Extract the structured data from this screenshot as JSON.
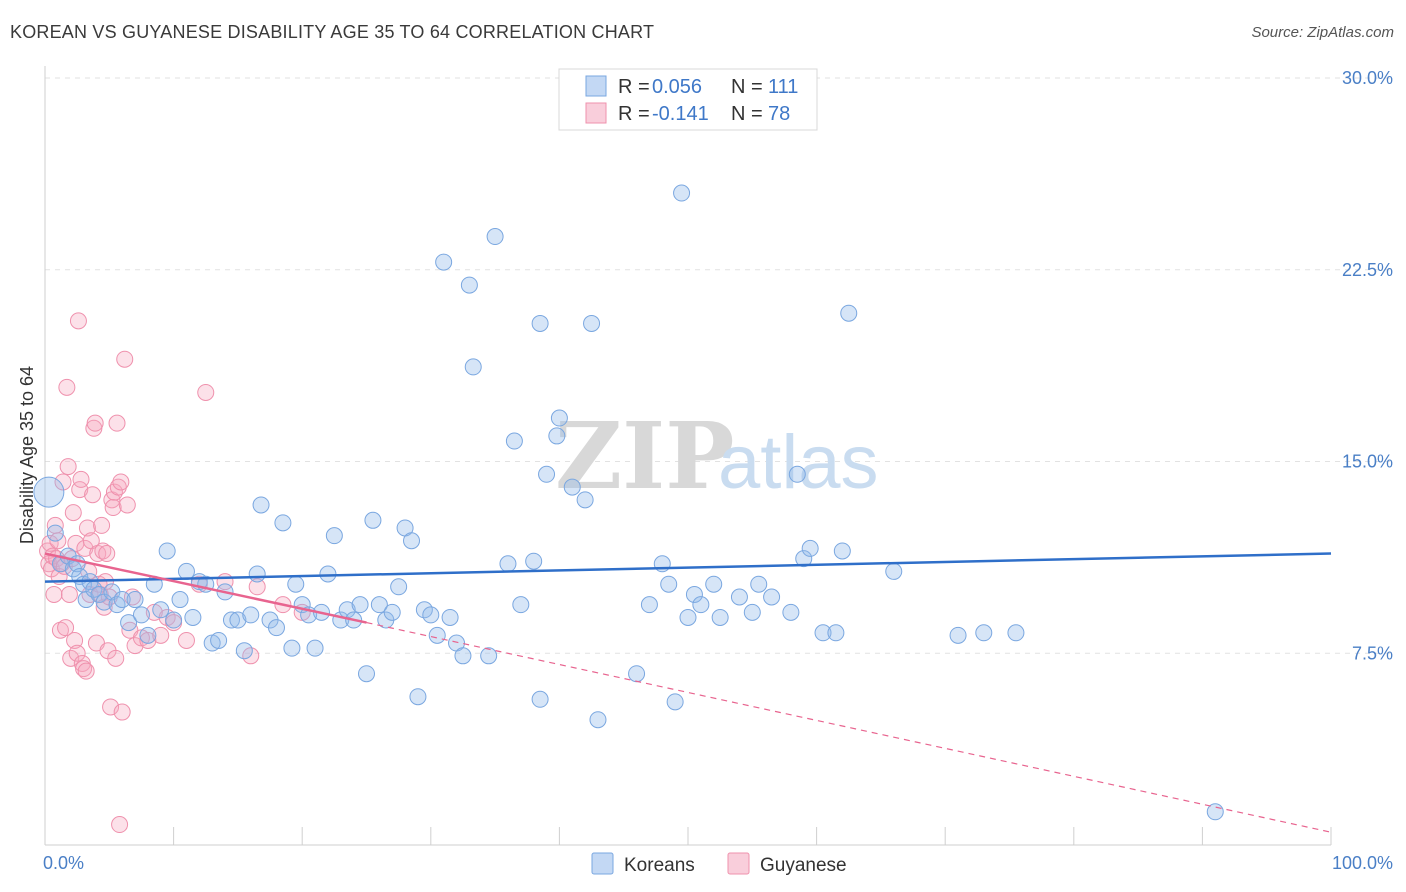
{
  "header": {
    "title": "KOREAN VS GUYANESE DISABILITY AGE 35 TO 64 CORRELATION CHART",
    "source": "Source: ZipAtlas.com"
  },
  "watermark": {
    "part1": "ZIP",
    "part2": "atlas"
  },
  "legend": {
    "r_label": "R =",
    "n_label": "N =",
    "rows": [
      {
        "r": "0.056",
        "n": "111",
        "color": "#a9c8ef"
      },
      {
        "r": "-0.141",
        "n": "78",
        "color": "#f7b9cc"
      }
    ]
  },
  "colors": {
    "koreans_fill": "rgba(146,186,234,0.38)",
    "koreans_stroke": "#7aa7e0",
    "koreans_line": "#2f6fc9",
    "guyanese_fill": "rgba(245,170,192,0.35)",
    "guyanese_stroke": "#ef91ad",
    "guyanese_line": "#e8648f"
  },
  "chart_data": {
    "type": "scatter",
    "title": "KOREAN VS GUYANESE DISABILITY AGE 35 TO 64 CORRELATION CHART",
    "xlabel": "",
    "ylabel": "Disability Age 35 to 64",
    "xlim": [
      0,
      100
    ],
    "ylim": [
      0,
      30.0
    ],
    "x_tick_labels": [
      "0.0%",
      "100.0%"
    ],
    "y_ticks": [
      7.5,
      15.0,
      22.5,
      30.0
    ],
    "y_tick_labels": [
      "7.5%",
      "15.0%",
      "22.5%",
      "30.0%"
    ],
    "grid": true,
    "legend_position": "top-center",
    "series": [
      {
        "name": "Koreans",
        "r": 0.056,
        "n": 111,
        "trend": {
          "x0": 0,
          "y0": 10.3,
          "x1": 100,
          "y1": 11.4
        },
        "points": [
          [
            0.3,
            13.8
          ],
          [
            0.8,
            12.2
          ],
          [
            1.2,
            11.0
          ],
          [
            1.8,
            11.3
          ],
          [
            2.2,
            10.8
          ],
          [
            2.5,
            11.0
          ],
          [
            2.7,
            10.5
          ],
          [
            3.0,
            10.2
          ],
          [
            3.2,
            9.6
          ],
          [
            3.5,
            10.3
          ],
          [
            3.8,
            10.0
          ],
          [
            4.2,
            9.8
          ],
          [
            4.6,
            9.5
          ],
          [
            5.2,
            9.9
          ],
          [
            5.6,
            9.4
          ],
          [
            6.0,
            9.6
          ],
          [
            6.5,
            8.7
          ],
          [
            7.0,
            9.6
          ],
          [
            7.5,
            9.0
          ],
          [
            8.0,
            8.2
          ],
          [
            8.5,
            10.2
          ],
          [
            9.0,
            9.2
          ],
          [
            9.5,
            11.5
          ],
          [
            10.0,
            8.8
          ],
          [
            10.5,
            9.6
          ],
          [
            11.0,
            10.7
          ],
          [
            11.5,
            8.9
          ],
          [
            12.0,
            10.3
          ],
          [
            12.5,
            10.2
          ],
          [
            13.0,
            7.9
          ],
          [
            13.5,
            8.0
          ],
          [
            14.0,
            9.9
          ],
          [
            14.5,
            8.8
          ],
          [
            15.0,
            8.8
          ],
          [
            15.5,
            7.6
          ],
          [
            16.0,
            9.0
          ],
          [
            16.5,
            10.6
          ],
          [
            16.8,
            13.3
          ],
          [
            17.5,
            8.8
          ],
          [
            18.0,
            8.5
          ],
          [
            18.5,
            12.6
          ],
          [
            19.2,
            7.7
          ],
          [
            19.5,
            10.2
          ],
          [
            20.0,
            9.4
          ],
          [
            20.5,
            9.0
          ],
          [
            21.0,
            7.7
          ],
          [
            21.5,
            9.1
          ],
          [
            22.0,
            10.6
          ],
          [
            22.5,
            12.1
          ],
          [
            23.0,
            8.8
          ],
          [
            23.5,
            9.2
          ],
          [
            24.0,
            8.8
          ],
          [
            24.5,
            9.4
          ],
          [
            25.0,
            6.7
          ],
          [
            25.5,
            12.7
          ],
          [
            26.0,
            9.4
          ],
          [
            26.5,
            8.8
          ],
          [
            27.0,
            9.1
          ],
          [
            27.5,
            10.1
          ],
          [
            28.0,
            12.4
          ],
          [
            28.5,
            11.9
          ],
          [
            29.0,
            5.8
          ],
          [
            29.5,
            9.2
          ],
          [
            30.0,
            9.0
          ],
          [
            30.5,
            8.2
          ],
          [
            31.0,
            22.8
          ],
          [
            31.5,
            8.9
          ],
          [
            32.0,
            7.9
          ],
          [
            32.5,
            7.4
          ],
          [
            33.0,
            21.9
          ],
          [
            33.3,
            18.7
          ],
          [
            34.5,
            7.4
          ],
          [
            35.0,
            23.8
          ],
          [
            36.0,
            11.0
          ],
          [
            36.5,
            15.8
          ],
          [
            37.0,
            9.4
          ],
          [
            38.0,
            11.1
          ],
          [
            38.5,
            20.4
          ],
          [
            38.5,
            5.7
          ],
          [
            39.0,
            14.5
          ],
          [
            39.8,
            16.0
          ],
          [
            40.0,
            16.7
          ],
          [
            41.0,
            14.0
          ],
          [
            42.0,
            13.5
          ],
          [
            42.5,
            20.4
          ],
          [
            43.0,
            4.9
          ],
          [
            46.0,
            6.7
          ],
          [
            47.0,
            9.4
          ],
          [
            48.0,
            11.0
          ],
          [
            48.5,
            10.2
          ],
          [
            49.0,
            5.6
          ],
          [
            49.5,
            25.5
          ],
          [
            50.0,
            8.9
          ],
          [
            50.5,
            9.8
          ],
          [
            51.0,
            9.4
          ],
          [
            52.0,
            10.2
          ],
          [
            52.5,
            8.9
          ],
          [
            54.0,
            9.7
          ],
          [
            55.0,
            9.1
          ],
          [
            55.5,
            10.2
          ],
          [
            56.5,
            9.7
          ],
          [
            58.0,
            9.1
          ],
          [
            58.5,
            14.5
          ],
          [
            59.0,
            11.2
          ],
          [
            59.5,
            11.6
          ],
          [
            60.5,
            8.3
          ],
          [
            61.5,
            8.3
          ],
          [
            62.0,
            11.5
          ],
          [
            62.5,
            20.8
          ],
          [
            66.0,
            10.7
          ],
          [
            71.0,
            8.2
          ],
          [
            73.0,
            8.3
          ],
          [
            75.5,
            8.3
          ],
          [
            91.0,
            1.3
          ]
        ]
      },
      {
        "name": "Guyanese",
        "r": -0.141,
        "n": 78,
        "trend": {
          "x0": 0,
          "y0": 11.4,
          "x1": 25,
          "y1": 8.7
        },
        "trend_extension": {
          "x0": 25,
          "y0": 8.7,
          "x1": 100,
          "y1": 0.5
        },
        "points": [
          [
            0.2,
            11.5
          ],
          [
            0.3,
            11.0
          ],
          [
            0.4,
            11.8
          ],
          [
            0.5,
            10.8
          ],
          [
            0.6,
            11.3
          ],
          [
            0.7,
            9.8
          ],
          [
            0.8,
            12.5
          ],
          [
            0.9,
            11.2
          ],
          [
            1.0,
            11.9
          ],
          [
            1.1,
            10.5
          ],
          [
            1.2,
            8.4
          ],
          [
            1.3,
            11.0
          ],
          [
            1.4,
            14.2
          ],
          [
            1.5,
            10.9
          ],
          [
            1.6,
            8.5
          ],
          [
            1.7,
            17.9
          ],
          [
            1.8,
            14.8
          ],
          [
            1.9,
            9.8
          ],
          [
            2.0,
            7.3
          ],
          [
            2.1,
            11.2
          ],
          [
            2.2,
            13.0
          ],
          [
            2.3,
            8.0
          ],
          [
            2.4,
            11.8
          ],
          [
            2.5,
            7.5
          ],
          [
            2.6,
            20.5
          ],
          [
            2.7,
            13.9
          ],
          [
            2.8,
            14.3
          ],
          [
            2.9,
            7.1
          ],
          [
            3.0,
            6.9
          ],
          [
            3.1,
            11.6
          ],
          [
            3.2,
            6.8
          ],
          [
            3.3,
            12.4
          ],
          [
            3.4,
            10.7
          ],
          [
            3.5,
            9.8
          ],
          [
            3.6,
            11.9
          ],
          [
            3.7,
            13.7
          ],
          [
            3.8,
            16.3
          ],
          [
            3.9,
            16.5
          ],
          [
            4.0,
            7.9
          ],
          [
            4.1,
            11.4
          ],
          [
            4.2,
            10.2
          ],
          [
            4.3,
            9.8
          ],
          [
            4.4,
            12.5
          ],
          [
            4.5,
            11.5
          ],
          [
            4.6,
            9.3
          ],
          [
            4.7,
            10.3
          ],
          [
            4.8,
            11.4
          ],
          [
            4.9,
            7.6
          ],
          [
            5.0,
            9.7
          ],
          [
            5.1,
            5.4
          ],
          [
            5.2,
            13.5
          ],
          [
            5.3,
            13.2
          ],
          [
            5.4,
            13.8
          ],
          [
            5.5,
            7.3
          ],
          [
            5.6,
            16.5
          ],
          [
            5.7,
            14.0
          ],
          [
            5.8,
            0.8
          ],
          [
            5.9,
            14.2
          ],
          [
            6.0,
            5.2
          ],
          [
            6.2,
            19.0
          ],
          [
            6.4,
            13.3
          ],
          [
            6.6,
            8.4
          ],
          [
            6.8,
            9.7
          ],
          [
            7.0,
            7.8
          ],
          [
            7.5,
            8.1
          ],
          [
            8.0,
            8.0
          ],
          [
            8.5,
            9.1
          ],
          [
            9.0,
            8.2
          ],
          [
            9.5,
            8.9
          ],
          [
            10.0,
            8.7
          ],
          [
            11.0,
            8.0
          ],
          [
            12.0,
            10.2
          ],
          [
            12.5,
            17.7
          ],
          [
            14.0,
            10.3
          ],
          [
            16.0,
            7.4
          ],
          [
            16.5,
            10.1
          ],
          [
            18.5,
            9.4
          ],
          [
            20.0,
            9.1
          ]
        ]
      }
    ]
  },
  "bottom_legend": {
    "items": [
      {
        "label": "Koreans",
        "color": "#a9c8ef"
      },
      {
        "label": "Guyanese",
        "color": "#f7b9cc"
      }
    ]
  }
}
